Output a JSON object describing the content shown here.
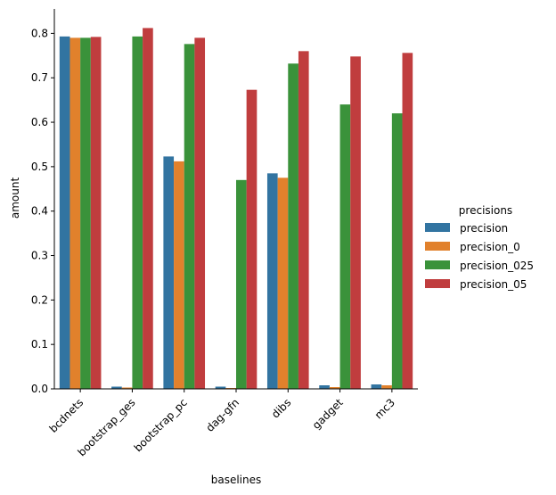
{
  "chart_data": {
    "type": "bar",
    "xlabel": "baselines",
    "ylabel": "amount",
    "categories": [
      "bcdnets",
      "bootstrap_ges",
      "bootstrap_pc",
      "dag-gfn",
      "dibs",
      "gadget",
      "mc3"
    ],
    "ylim": [
      0,
      0.855
    ],
    "yticks": [
      "0.0",
      "0.1",
      "0.2",
      "0.3",
      "0.4",
      "0.5",
      "0.6",
      "0.7",
      "0.8"
    ],
    "legend": {
      "title": "precisions",
      "position": "right"
    },
    "grid": false,
    "series": [
      {
        "name": "precision",
        "color": "#3274a1",
        "values": [
          0.793,
          0.005,
          0.523,
          0.005,
          0.485,
          0.008,
          0.01
        ]
      },
      {
        "name": "precision_0",
        "color": "#e1812c",
        "values": [
          0.79,
          0.003,
          0.512,
          0.002,
          0.475,
          0.004,
          0.008
        ]
      },
      {
        "name": "precision_025",
        "color": "#3a923a",
        "values": [
          0.79,
          0.793,
          0.776,
          0.47,
          0.732,
          0.64,
          0.62
        ]
      },
      {
        "name": "precision_05",
        "color": "#c03d3e",
        "values": [
          0.792,
          0.812,
          0.79,
          0.673,
          0.76,
          0.748,
          0.756
        ]
      }
    ]
  }
}
